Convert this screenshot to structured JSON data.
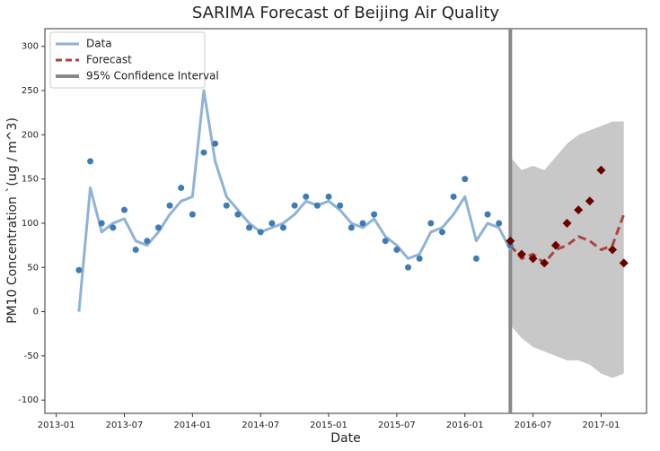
{
  "chart_data": {
    "type": "timeseries",
    "title": "SARIMA Forecast of Beijing Air Quality",
    "x_label": "Date",
    "y_label": "PM10 Concentration `(ug / m^3)",
    "xlim": [
      "2012-12",
      "2017-05"
    ],
    "xticks": [
      "2013-01",
      "2013-07",
      "2014-01",
      "2014-07",
      "2015-01",
      "2015-07",
      "2016-01",
      "2016-07",
      "2017-01"
    ],
    "ylim": [
      -115,
      320
    ],
    "yticks": [
      -100,
      -50,
      0,
      50,
      100,
      150,
      200,
      250,
      300
    ],
    "legend": "upper left",
    "series": [
      {
        "name": "Data",
        "type": "line",
        "color": "#8fb3d5",
        "x": [
          "2013-03",
          "2013-04",
          "2013-05",
          "2013-06",
          "2013-07",
          "2013-08",
          "2013-09",
          "2013-10",
          "2013-11",
          "2013-12",
          "2014-01",
          "2014-02",
          "2014-03",
          "2014-04",
          "2014-05",
          "2014-06",
          "2014-07",
          "2014-08",
          "2014-09",
          "2014-10",
          "2014-11",
          "2014-12",
          "2015-01",
          "2015-02",
          "2015-03",
          "2015-04",
          "2015-05",
          "2015-06",
          "2015-07",
          "2015-08",
          "2015-09",
          "2015-10",
          "2015-11",
          "2015-12",
          "2016-01",
          "2016-02",
          "2016-03",
          "2016-04",
          "2016-05"
        ],
        "values": [
          0,
          140,
          90,
          100,
          105,
          80,
          75,
          90,
          110,
          125,
          130,
          250,
          170,
          130,
          115,
          100,
          90,
          95,
          100,
          110,
          125,
          120,
          125,
          115,
          100,
          95,
          105,
          85,
          75,
          60,
          65,
          90,
          95,
          110,
          130,
          80,
          100,
          95,
          70
        ]
      },
      {
        "type": "scatter",
        "marker": "circle",
        "color": "#3f7bb5",
        "x": [
          "2013-03",
          "2013-04",
          "2013-05",
          "2013-06",
          "2013-07",
          "2013-08",
          "2013-09",
          "2013-10",
          "2013-11",
          "2013-12",
          "2014-01",
          "2014-02",
          "2014-03",
          "2014-04",
          "2014-05",
          "2014-06",
          "2014-07",
          "2014-08",
          "2014-09",
          "2014-10",
          "2014-11",
          "2014-12",
          "2015-01",
          "2015-02",
          "2015-03",
          "2015-04",
          "2015-05",
          "2015-06",
          "2015-07",
          "2015-08",
          "2015-09",
          "2015-10",
          "2015-11",
          "2015-12",
          "2016-01",
          "2016-02",
          "2016-03",
          "2016-04",
          "2016-05"
        ],
        "values": [
          47,
          170,
          100,
          95,
          115,
          70,
          80,
          95,
          120,
          140,
          110,
          180,
          190,
          120,
          110,
          95,
          90,
          100,
          95,
          120,
          130,
          120,
          130,
          120,
          95,
          100,
          110,
          80,
          70,
          50,
          60,
          100,
          90,
          130,
          150,
          60,
          110,
          100,
          75
        ]
      },
      {
        "name": "Forecast",
        "type": "line",
        "dashed": true,
        "color": "#a94442",
        "x": [
          "2016-05",
          "2016-06",
          "2016-07",
          "2016-08",
          "2016-09",
          "2016-10",
          "2016-11",
          "2016-12",
          "2017-01",
          "2017-02",
          "2017-03"
        ],
        "values": [
          75,
          60,
          65,
          55,
          70,
          75,
          85,
          80,
          70,
          75,
          110
        ]
      },
      {
        "name": "95% Confidence Interval",
        "type": "band",
        "color": "#999999",
        "x": [
          "2016-05",
          "2016-06",
          "2016-07",
          "2016-08",
          "2016-09",
          "2016-10",
          "2016-11",
          "2016-12",
          "2017-01",
          "2017-02",
          "2017-03"
        ],
        "lower": [
          -15,
          -30,
          -40,
          -45,
          -50,
          -55,
          -55,
          -60,
          -70,
          -75,
          -70
        ],
        "upper": [
          175,
          160,
          165,
          160,
          175,
          190,
          200,
          205,
          210,
          215,
          215
        ]
      },
      {
        "type": "scatter",
        "marker": "diamond",
        "color": "#6b0000",
        "x": [
          "2016-05",
          "2016-06",
          "2016-07",
          "2016-08",
          "2016-09",
          "2016-10",
          "2016-11",
          "2016-12",
          "2017-01",
          "2017-02",
          "2017-03"
        ],
        "values": [
          80,
          65,
          60,
          55,
          75,
          100,
          115,
          125,
          160,
          70,
          55
        ]
      }
    ]
  }
}
